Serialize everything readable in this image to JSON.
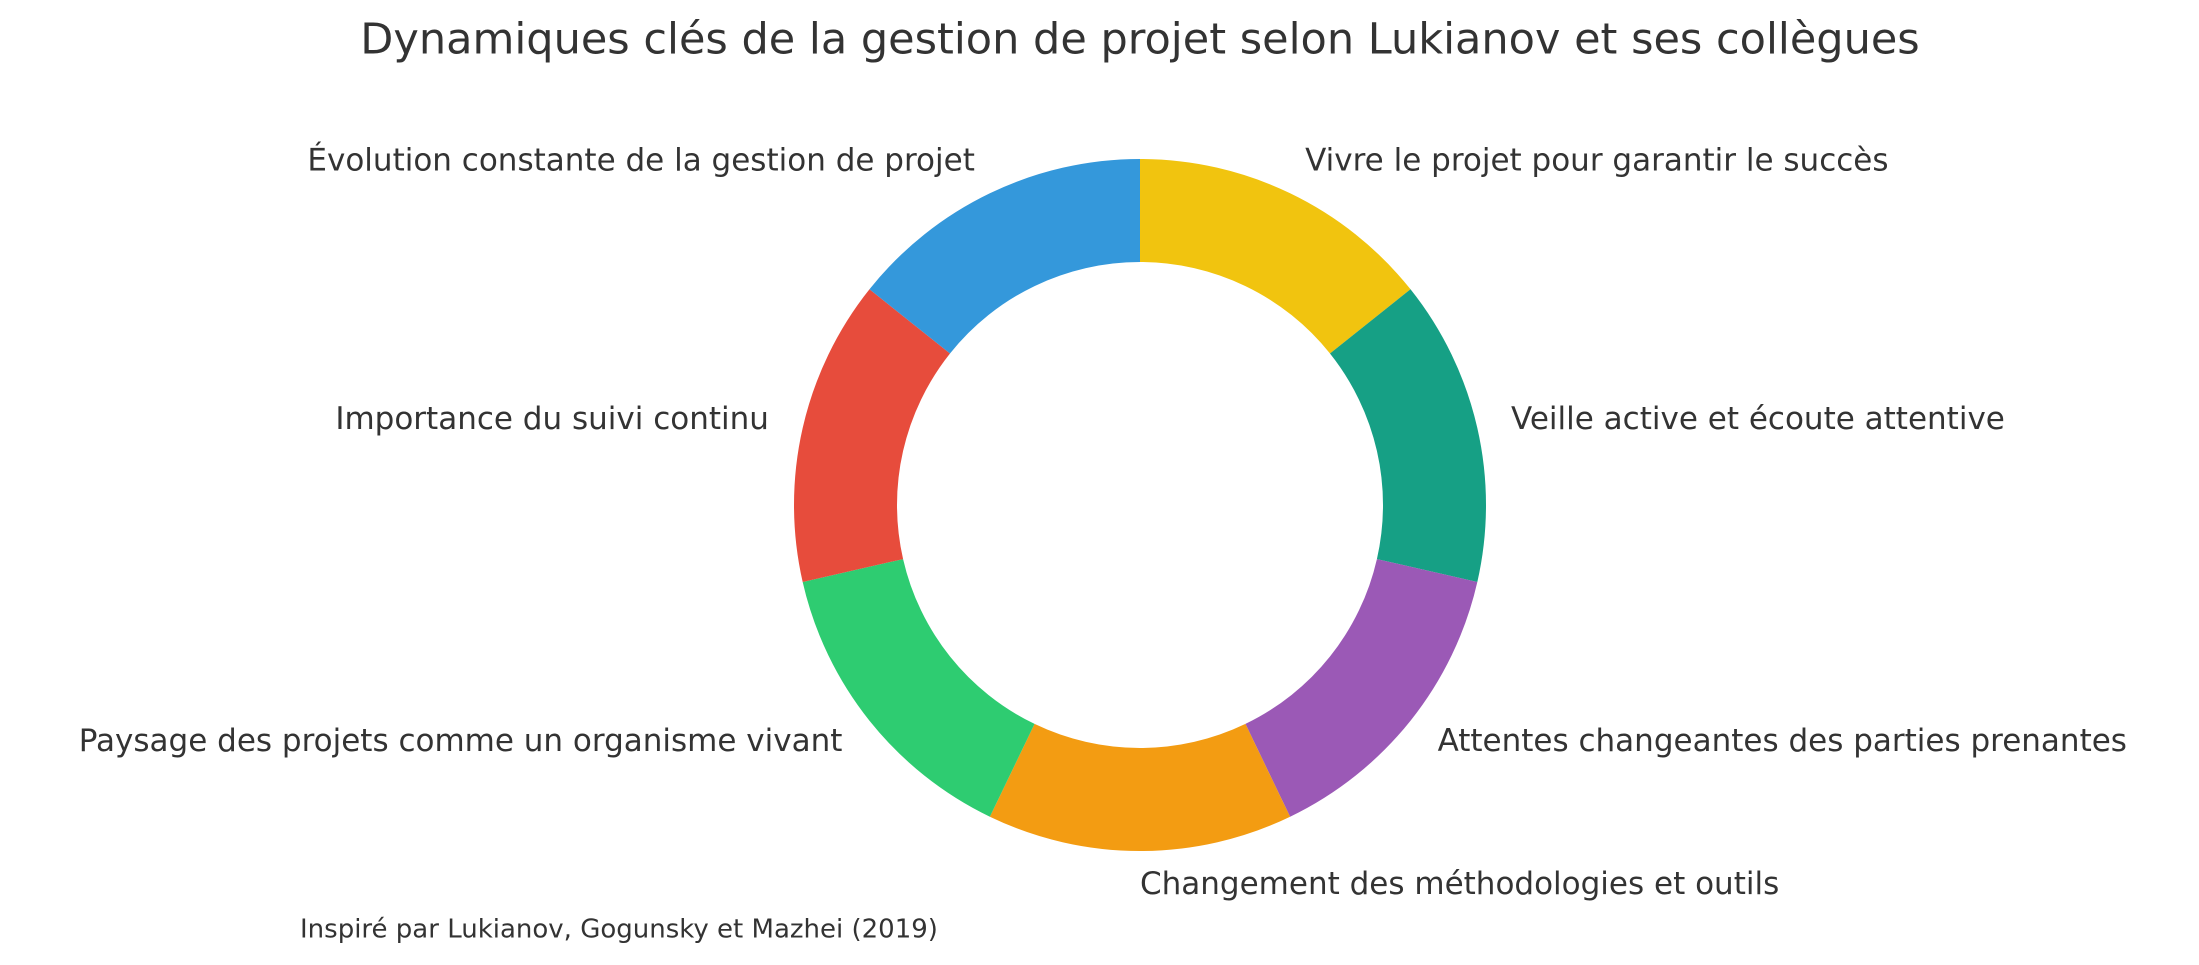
{
  "chart_data": {
    "type": "donut",
    "title": "Dynamiques clés de la gestion de projet selon Lukianov et ses collègues",
    "categories": [
      "Vivre le projet pour garantir le succès",
      "Veille active et écoute attentive",
      "Attentes changeantes des parties prenantes",
      "Changement des méthodologies et outils",
      "Paysage des projets comme un organisme vivant",
      "Importance du suivi continu",
      "Évolution constante de la gestion de projet"
    ],
    "values": [
      1,
      1,
      1,
      1,
      1,
      1,
      1
    ],
    "colors": [
      "#f1c40f",
      "#16a085",
      "#9b59b6",
      "#f39c12",
      "#2ecc71",
      "#e74c3c",
      "#3498db"
    ],
    "caption": "Inspiré par Lukianov, Gogunsky et Mazhei (2019)"
  }
}
